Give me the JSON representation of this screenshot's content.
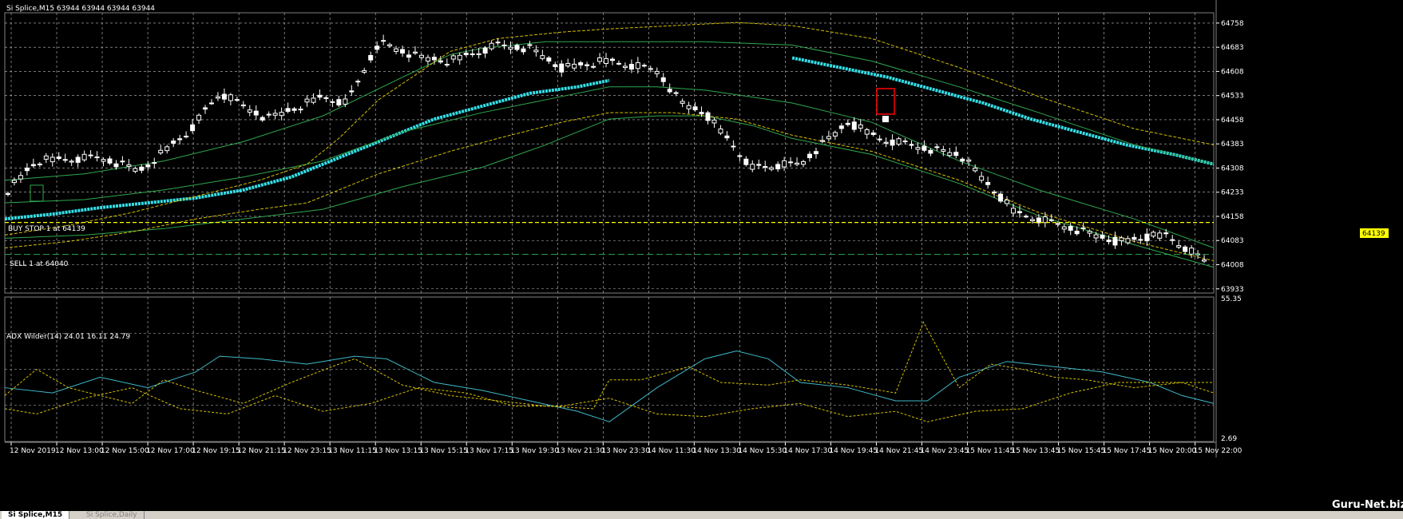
{
  "window": {
    "chart_title": "Si Splice,M15  63944 63944 63944 63944",
    "indicator_title": "ADX Wilder(14) 24.01 16.11 24.79",
    "watermark": "Guru-Net.biz"
  },
  "tabs": [
    {
      "label": "Si Splice,M15",
      "active": true
    },
    {
      "label": "Si Splice,Daily",
      "active": false
    }
  ],
  "orders": {
    "buy_stop_label": "BUY STOP 1 at 64139",
    "sell_label": "SELL 1 at 64040",
    "buy_stop_tag": "64139"
  },
  "colors": {
    "background": "#000000",
    "grid": "#c0c0c0",
    "candle": "#ffffff",
    "envelope": "#d4c000",
    "ma": "#2fa84f",
    "highlight_ma": "#33e0e8",
    "adx": "#3fb8c8",
    "buy_stop_line": "#ffff00",
    "sell_line": "#2fa84f",
    "stop_marker": "#ff0000",
    "tab_bar": "#d4d0c8"
  },
  "chart_data": {
    "type": "line",
    "price_ticks": [
      "64758",
      "64683",
      "64608",
      "64533",
      "64458",
      "64383",
      "64308",
      "64233",
      "64158",
      "64083",
      "64008",
      "63933"
    ],
    "price_range": [
      63920,
      64790
    ],
    "indicator_ticks": [
      "55.35",
      "2.69"
    ],
    "indicator_range": [
      2.69,
      55.35
    ],
    "time_labels": [
      "12 Nov 2019",
      "12 Nov 13:00",
      "12 Nov 15:00",
      "12 Nov 17:00",
      "12 Nov 19:15",
      "12 Nov 21:15",
      "12 Nov 23:15",
      "13 Nov 11:15",
      "13 Nov 13:15",
      "13 Nov 15:15",
      "13 Nov 17:15",
      "13 Nov 19:30",
      "13 Nov 21:30",
      "13 Nov 23:30",
      "14 Nov 11:30",
      "14 Nov 13:30",
      "14 Nov 15:30",
      "14 Nov 17:30",
      "14 Nov 19:45",
      "14 Nov 21:45",
      "14 Nov 23:45",
      "15 Nov 11:45",
      "15 Nov 13:45",
      "15 Nov 15:45",
      "15 Nov 17:45",
      "15 Nov 20:00",
      "15 Nov 22:00"
    ],
    "buy_stop_level": 64139,
    "sell_level": 64040,
    "series": [
      {
        "color": "#33e0e8",
        "values": [
          [
            0,
            64150
          ],
          [
            60,
            64165
          ],
          [
            120,
            64185
          ],
          [
            180,
            64200
          ],
          [
            240,
            64215
          ],
          [
            300,
            64240
          ],
          [
            360,
            64280
          ],
          [
            420,
            64340
          ],
          [
            480,
            64400
          ],
          [
            540,
            64460
          ],
          [
            600,
            64500
          ],
          [
            660,
            64540
          ],
          [
            720,
            64560
          ],
          [
            760,
            64580
          ]
        ]
      },
      {
        "color": "#33e0e8",
        "values": [
          [
            990,
            64650
          ],
          [
            1050,
            64620
          ],
          [
            1110,
            64590
          ],
          [
            1170,
            64550
          ],
          [
            1230,
            64510
          ],
          [
            1290,
            64460
          ],
          [
            1350,
            64420
          ],
          [
            1410,
            64380
          ],
          [
            1470,
            64350
          ],
          [
            1520,
            64320
          ]
        ]
      },
      {
        "color": "#2fa84f",
        "values": [
          [
            0,
            64270
          ],
          [
            100,
            64290
          ],
          [
            200,
            64330
          ],
          [
            300,
            64390
          ],
          [
            400,
            64470
          ],
          [
            500,
            64590
          ],
          [
            560,
            64660
          ],
          [
            600,
            64680
          ],
          [
            680,
            64700
          ],
          [
            760,
            64700
          ],
          [
            880,
            64700
          ],
          [
            990,
            64690
          ],
          [
            1090,
            64640
          ],
          [
            1200,
            64560
          ],
          [
            1300,
            64480
          ],
          [
            1420,
            64380
          ],
          [
            1520,
            64320
          ]
        ]
      },
      {
        "color": "#2fa84f",
        "values": [
          [
            0,
            64200
          ],
          [
            100,
            64210
          ],
          [
            200,
            64240
          ],
          [
            300,
            64280
          ],
          [
            400,
            64330
          ],
          [
            500,
            64420
          ],
          [
            600,
            64480
          ],
          [
            680,
            64520
          ],
          [
            760,
            64560
          ],
          [
            820,
            64560
          ],
          [
            880,
            64550
          ],
          [
            990,
            64510
          ],
          [
            1090,
            64450
          ],
          [
            1200,
            64330
          ],
          [
            1300,
            64240
          ],
          [
            1420,
            64150
          ],
          [
            1520,
            64060
          ]
        ]
      },
      {
        "color": "#2fa84f",
        "values": [
          [
            0,
            64090
          ],
          [
            100,
            64100
          ],
          [
            200,
            64120
          ],
          [
            300,
            64150
          ],
          [
            400,
            64180
          ],
          [
            500,
            64250
          ],
          [
            600,
            64310
          ],
          [
            680,
            64380
          ],
          [
            760,
            64460
          ],
          [
            820,
            64470
          ],
          [
            880,
            64470
          ],
          [
            940,
            64440
          ],
          [
            990,
            64400
          ],
          [
            1090,
            64350
          ],
          [
            1200,
            64260
          ],
          [
            1300,
            64160
          ],
          [
            1420,
            64070
          ],
          [
            1520,
            64000
          ]
        ]
      },
      {
        "color": "#d4c000",
        "values": [
          [
            0,
            64100
          ],
          [
            80,
            64130
          ],
          [
            160,
            64170
          ],
          [
            240,
            64220
          ],
          [
            320,
            64270
          ],
          [
            380,
            64320
          ],
          [
            420,
            64400
          ],
          [
            470,
            64520
          ],
          [
            560,
            64670
          ],
          [
            620,
            64710
          ],
          [
            700,
            64730
          ],
          [
            760,
            64740
          ],
          [
            840,
            64750
          ],
          [
            920,
            64760
          ],
          [
            990,
            64750
          ],
          [
            1090,
            64710
          ],
          [
            1200,
            64620
          ],
          [
            1300,
            64530
          ],
          [
            1420,
            64430
          ],
          [
            1520,
            64380
          ]
        ]
      },
      {
        "color": "#d4c000",
        "values": [
          [
            0,
            64060
          ],
          [
            80,
            64080
          ],
          [
            160,
            64110
          ],
          [
            240,
            64150
          ],
          [
            320,
            64180
          ],
          [
            380,
            64200
          ],
          [
            420,
            64240
          ],
          [
            470,
            64290
          ],
          [
            560,
            64360
          ],
          [
            620,
            64400
          ],
          [
            700,
            64450
          ],
          [
            760,
            64480
          ],
          [
            840,
            64480
          ],
          [
            920,
            64460
          ],
          [
            990,
            64410
          ],
          [
            1090,
            64360
          ],
          [
            1200,
            64270
          ],
          [
            1300,
            64170
          ],
          [
            1420,
            64080
          ],
          [
            1520,
            64020
          ]
        ]
      }
    ],
    "adx": [
      {
        "color": "#3fb8c8",
        "values": [
          [
            0,
            22
          ],
          [
            60,
            20
          ],
          [
            120,
            26
          ],
          [
            180,
            22
          ],
          [
            240,
            28
          ],
          [
            270,
            34
          ],
          [
            320,
            33
          ],
          [
            380,
            31
          ],
          [
            440,
            34
          ],
          [
            480,
            33
          ],
          [
            540,
            24
          ],
          [
            600,
            21
          ],
          [
            660,
            17
          ],
          [
            720,
            13
          ],
          [
            760,
            9
          ],
          [
            820,
            22
          ],
          [
            880,
            33
          ],
          [
            920,
            36
          ],
          [
            960,
            33
          ],
          [
            1000,
            24
          ],
          [
            1060,
            22
          ],
          [
            1120,
            17
          ],
          [
            1160,
            17
          ],
          [
            1200,
            26
          ],
          [
            1260,
            32
          ],
          [
            1320,
            30
          ],
          [
            1380,
            28
          ],
          [
            1440,
            24
          ],
          [
            1480,
            19
          ],
          [
            1520,
            16
          ]
        ]
      },
      {
        "color": "#d4c000",
        "values": [
          [
            0,
            19
          ],
          [
            40,
            29
          ],
          [
            80,
            22
          ],
          [
            120,
            19
          ],
          [
            160,
            16
          ],
          [
            200,
            25
          ],
          [
            240,
            21
          ],
          [
            300,
            16
          ],
          [
            360,
            24
          ],
          [
            420,
            31
          ],
          [
            440,
            33
          ],
          [
            500,
            23
          ],
          [
            560,
            19
          ],
          [
            620,
            17
          ],
          [
            680,
            15
          ],
          [
            740,
            14
          ],
          [
            760,
            25
          ],
          [
            800,
            25
          ],
          [
            860,
            30
          ],
          [
            900,
            24
          ],
          [
            960,
            23
          ],
          [
            1000,
            25
          ],
          [
            1060,
            23
          ],
          [
            1120,
            20
          ],
          [
            1155,
            47
          ],
          [
            1200,
            22
          ],
          [
            1240,
            31
          ],
          [
            1280,
            29
          ],
          [
            1320,
            26
          ],
          [
            1360,
            25
          ],
          [
            1420,
            22
          ],
          [
            1480,
            24
          ],
          [
            1520,
            20
          ]
        ]
      },
      {
        "color": "#d4c000",
        "values": [
          [
            0,
            14
          ],
          [
            40,
            12
          ],
          [
            100,
            18
          ],
          [
            160,
            22
          ],
          [
            220,
            14
          ],
          [
            280,
            12
          ],
          [
            340,
            19
          ],
          [
            400,
            13
          ],
          [
            460,
            16
          ],
          [
            520,
            22
          ],
          [
            580,
            20
          ],
          [
            640,
            15
          ],
          [
            700,
            15
          ],
          [
            760,
            18
          ],
          [
            820,
            12
          ],
          [
            880,
            11
          ],
          [
            940,
            14
          ],
          [
            1000,
            16
          ],
          [
            1060,
            11
          ],
          [
            1120,
            13
          ],
          [
            1160,
            9
          ],
          [
            1220,
            13
          ],
          [
            1280,
            14
          ],
          [
            1340,
            20
          ],
          [
            1400,
            24
          ],
          [
            1460,
            24
          ],
          [
            1520,
            24
          ]
        ]
      }
    ]
  }
}
